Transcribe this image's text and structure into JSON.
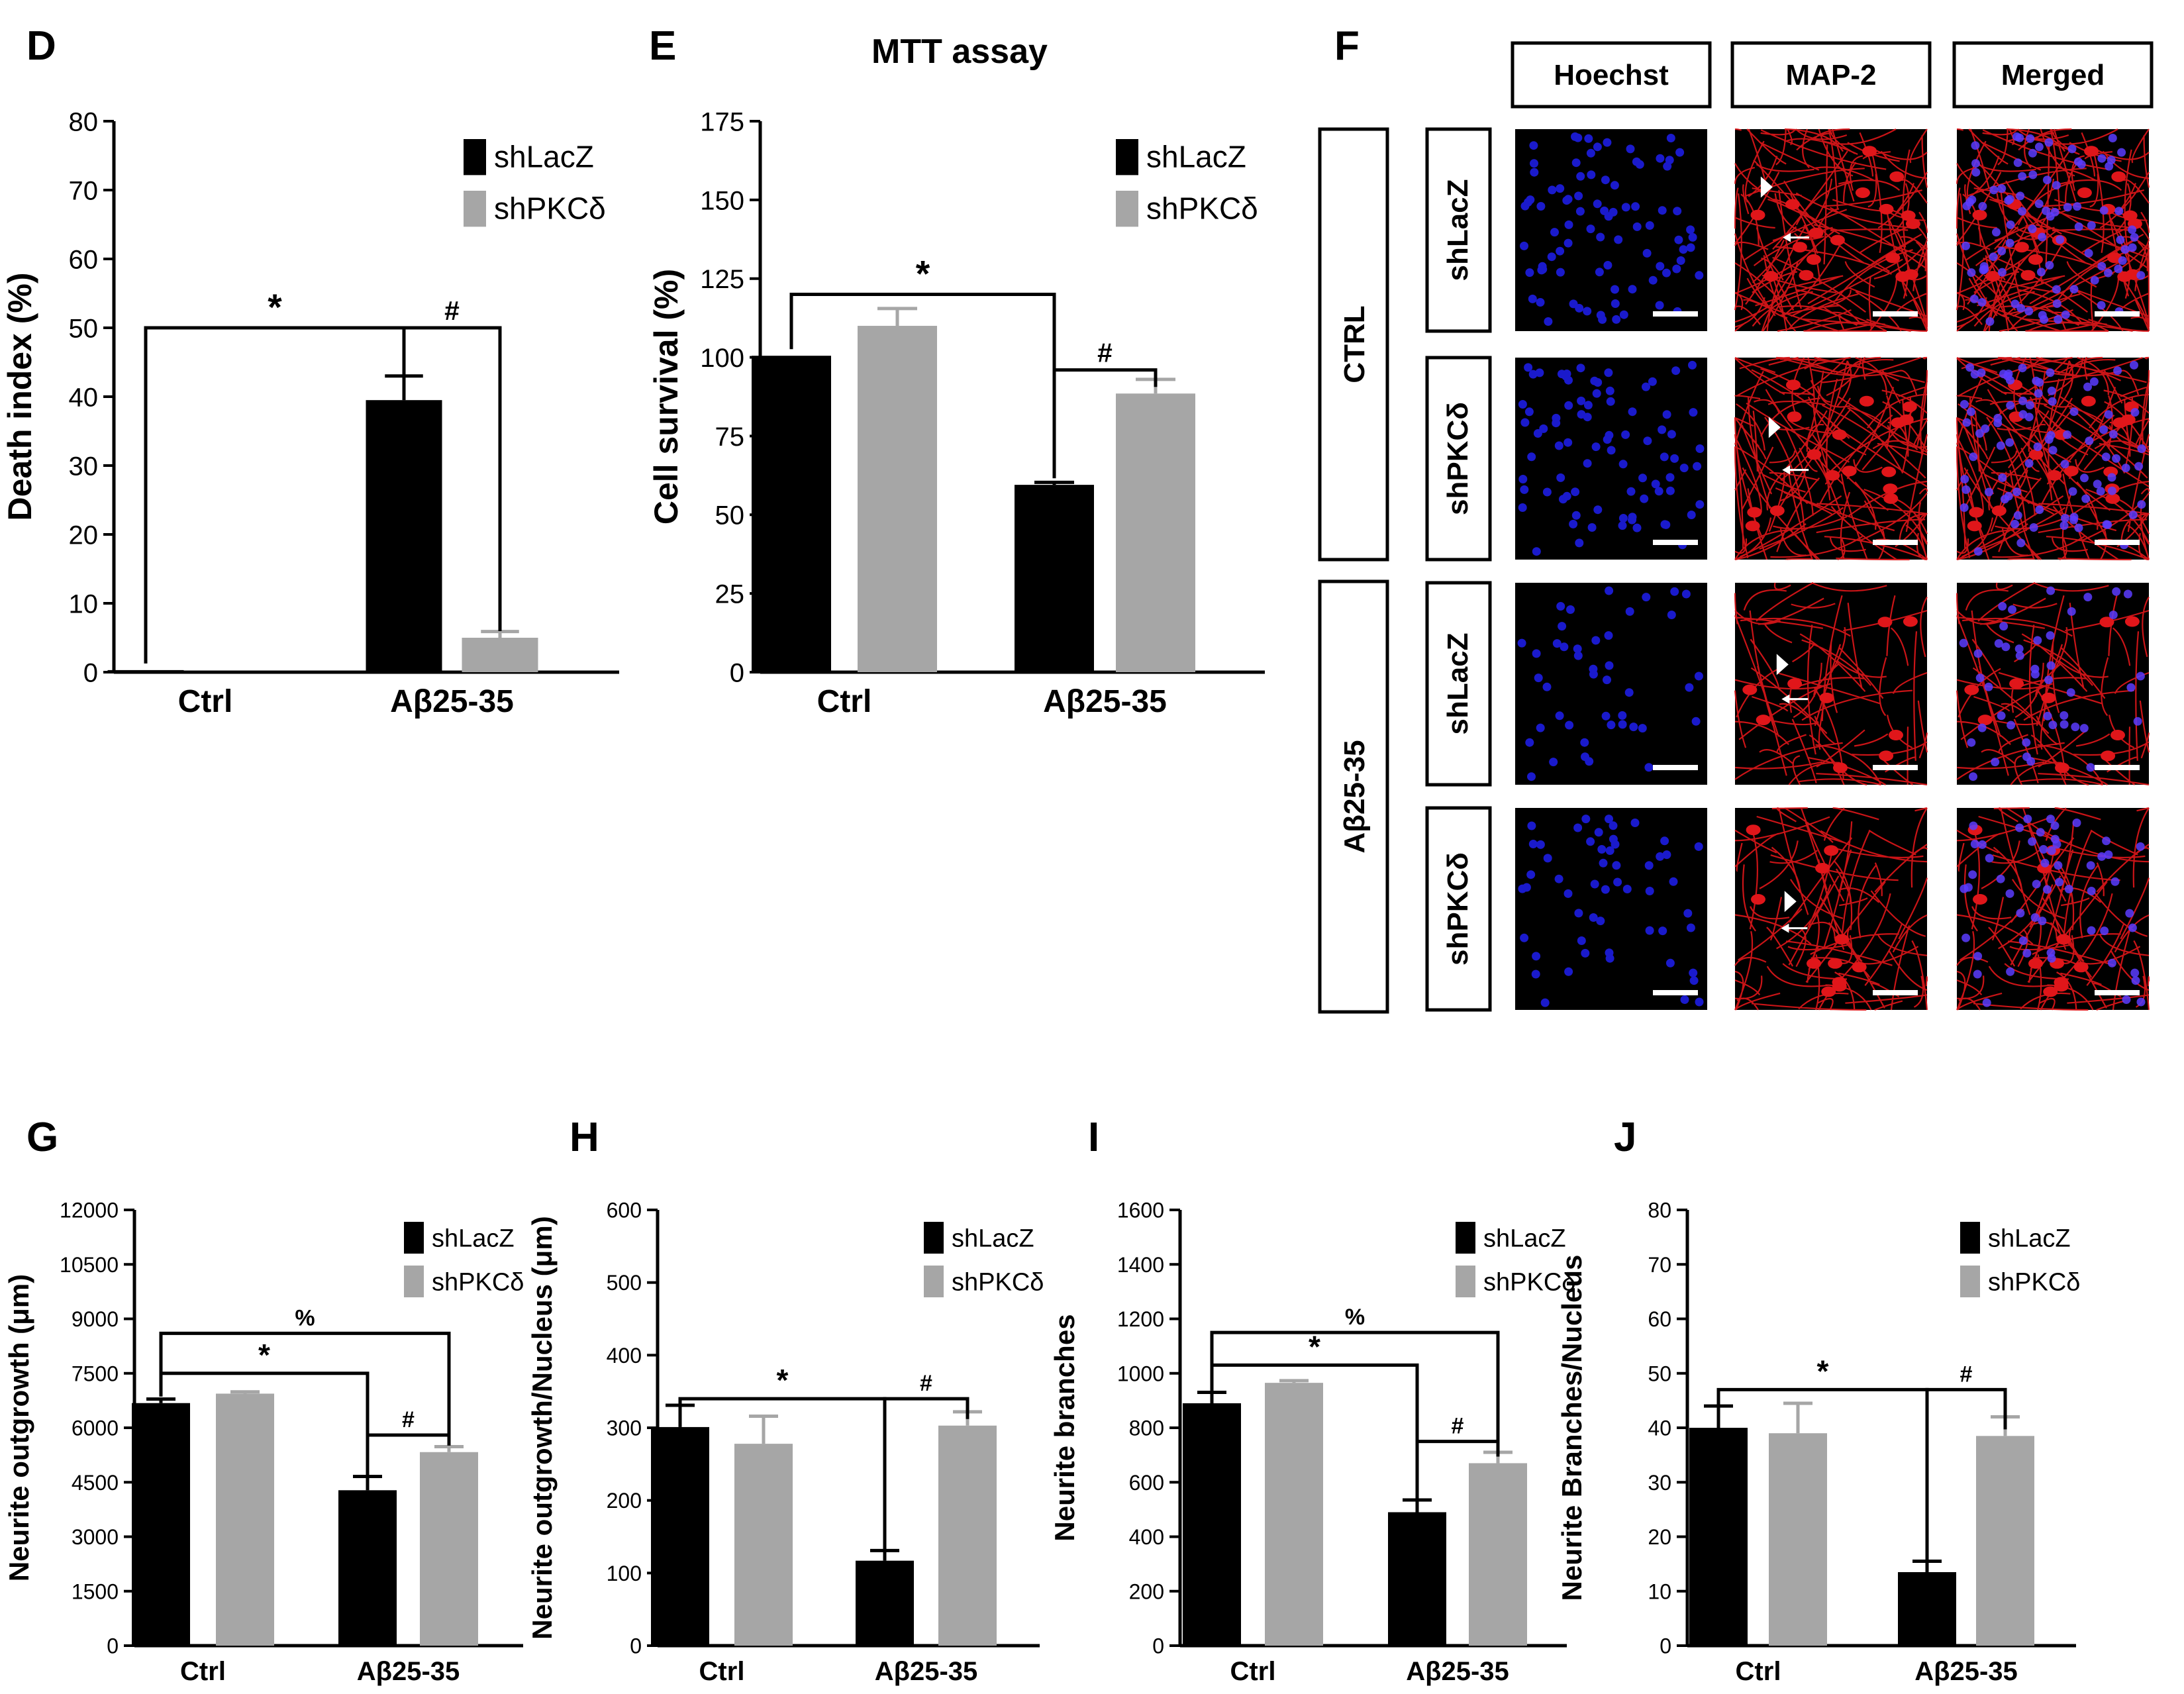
{
  "colors": {
    "shLacZ": "#000000",
    "shPKCd": "#a6a6a6",
    "error_shLacZ": "#000000",
    "error_shPKCd": "#a6a6a6",
    "hoechst": "#1a1acc",
    "map2": "#e0161a"
  },
  "legend": {
    "series1": "shLacZ",
    "series2": "shPKCδ"
  },
  "chart_data": [
    {
      "panel": "D",
      "type": "bar",
      "title": "",
      "ylabel": "Death index (%)",
      "xlabel": "",
      "categories": [
        "Ctrl",
        "Aβ25-35"
      ],
      "ylim": [
        0,
        80
      ],
      "yticks": [
        "0",
        "10",
        "20",
        "30",
        "40",
        "50",
        "60",
        "70",
        "80"
      ],
      "series": [
        {
          "name": "shLacZ",
          "values": [
            0.3,
            39.5
          ],
          "errors": [
            0,
            3.5
          ]
        },
        {
          "name": "shPKCδ",
          "values": [
            0,
            5
          ],
          "errors": [
            0,
            0.9
          ]
        }
      ],
      "annotations": [
        {
          "symbol": "*",
          "from": [
            0,
            0
          ],
          "to": [
            1,
            0
          ],
          "level": 50
        },
        {
          "symbol": "#",
          "from": [
            1,
            0
          ],
          "to": [
            1,
            1
          ],
          "level": 50
        }
      ]
    },
    {
      "panel": "E",
      "type": "bar",
      "title": "MTT assay",
      "ylabel": "Cell survival (%)",
      "xlabel": "",
      "categories": [
        "Ctrl",
        "Aβ25-35"
      ],
      "ylim": [
        0,
        175
      ],
      "yticks": [
        "0",
        "25",
        "50",
        "75",
        "100",
        "125",
        "150",
        "175"
      ],
      "series": [
        {
          "name": "shLacZ",
          "values": [
            100.5,
            59.5
          ],
          "errors": [
            0,
            0.8
          ]
        },
        {
          "name": "shPKCδ",
          "values": [
            110,
            88.5
          ],
          "errors": [
            5.5,
            4.5
          ]
        }
      ],
      "annotations": [
        {
          "symbol": "*",
          "from": [
            0,
            0
          ],
          "to": [
            1,
            0
          ],
          "level": 120
        },
        {
          "symbol": "#",
          "from": [
            1,
            0
          ],
          "to": [
            1,
            1
          ],
          "level": 96
        }
      ]
    },
    {
      "panel": "G",
      "type": "bar",
      "title": "",
      "ylabel": "Neurite outgrowth (μm)",
      "xlabel": "",
      "categories": [
        "Ctrl",
        "Aβ25-35"
      ],
      "ylim": [
        0,
        12000
      ],
      "yticks": [
        "0",
        "1500",
        "3000",
        "4500",
        "6000",
        "7500",
        "9000",
        "10500",
        "12000"
      ],
      "series": [
        {
          "name": "shLacZ",
          "values": [
            6680,
            4280
          ],
          "errors": [
            110,
            380
          ]
        },
        {
          "name": "shPKCδ",
          "values": [
            6940,
            5330
          ],
          "errors": [
            50,
            150
          ]
        }
      ],
      "annotations": [
        {
          "symbol": "%",
          "from": [
            0,
            0
          ],
          "to": [
            1,
            1
          ],
          "level": 8600
        },
        {
          "symbol": "*",
          "from": [
            0,
            0
          ],
          "to": [
            1,
            0
          ],
          "level": 7500
        },
        {
          "symbol": "#",
          "from": [
            1,
            0
          ],
          "to": [
            1,
            1
          ],
          "level": 5800
        }
      ]
    },
    {
      "panel": "H",
      "type": "bar",
      "title": "",
      "ylabel": "Neurite outgrowth/Nucleus (μm)",
      "xlabel": "",
      "categories": [
        "Ctrl",
        "Aβ25-35"
      ],
      "ylim": [
        0,
        600
      ],
      "yticks": [
        "0",
        "100",
        "200",
        "300",
        "400",
        "500",
        "600"
      ],
      "series": [
        {
          "name": "shLacZ",
          "values": [
            301,
            117
          ],
          "errors": [
            30,
            14
          ]
        },
        {
          "name": "shPKCδ",
          "values": [
            278,
            303
          ],
          "errors": [
            38,
            19
          ]
        }
      ],
      "annotations": [
        {
          "symbol": "*",
          "from": [
            0,
            0
          ],
          "to": [
            1,
            0
          ],
          "level": 340
        },
        {
          "symbol": "#",
          "from": [
            1,
            0
          ],
          "to": [
            1,
            1
          ],
          "level": 340
        }
      ]
    },
    {
      "panel": "I",
      "type": "bar",
      "title": "",
      "ylabel": "Neurite branches",
      "xlabel": "",
      "categories": [
        "Ctrl",
        "Aβ25-35"
      ],
      "ylim": [
        0,
        1600
      ],
      "yticks": [
        "0",
        "200",
        "400",
        "600",
        "800",
        "1000",
        "1200",
        "1400",
        "1600"
      ],
      "series": [
        {
          "name": "shLacZ",
          "values": [
            890,
            490
          ],
          "errors": [
            40,
            45
          ]
        },
        {
          "name": "shPKCδ",
          "values": [
            965,
            670
          ],
          "errors": [
            8,
            40
          ]
        }
      ],
      "annotations": [
        {
          "symbol": "%",
          "from": [
            0,
            0
          ],
          "to": [
            1,
            1
          ],
          "level": 1150
        },
        {
          "symbol": "*",
          "from": [
            0,
            0
          ],
          "to": [
            1,
            0
          ],
          "level": 1030
        },
        {
          "symbol": "#",
          "from": [
            1,
            0
          ],
          "to": [
            1,
            1
          ],
          "level": 750
        }
      ]
    },
    {
      "panel": "J",
      "type": "bar",
      "title": "",
      "ylabel": "Neurite Branches/Nucleus",
      "xlabel": "",
      "categories": [
        "Ctrl",
        "Aβ25-35"
      ],
      "ylim": [
        0,
        80
      ],
      "yticks": [
        "0",
        "10",
        "20",
        "30",
        "40",
        "50",
        "60",
        "70",
        "80"
      ],
      "series": [
        {
          "name": "shLacZ",
          "values": [
            40,
            13.5
          ],
          "errors": [
            4,
            2
          ]
        },
        {
          "name": "shPKCδ",
          "values": [
            39,
            38.5
          ],
          "errors": [
            5.5,
            3.5
          ]
        }
      ],
      "annotations": [
        {
          "symbol": "*",
          "from": [
            0,
            0
          ],
          "to": [
            1,
            0
          ],
          "level": 47
        },
        {
          "symbol": "#",
          "from": [
            1,
            0
          ],
          "to": [
            1,
            1
          ],
          "level": 47
        }
      ]
    }
  ],
  "image_panel": {
    "letter": "F",
    "column_headers": [
      "Hoechst",
      "MAP-2",
      "Merged"
    ],
    "groups": [
      "CTRL",
      "Aβ25-35"
    ],
    "rows": [
      "shLacZ",
      "shPKCδ",
      "shLacZ",
      "shPKCδ"
    ],
    "densities": [
      1.0,
      0.95,
      0.4,
      0.55
    ]
  }
}
